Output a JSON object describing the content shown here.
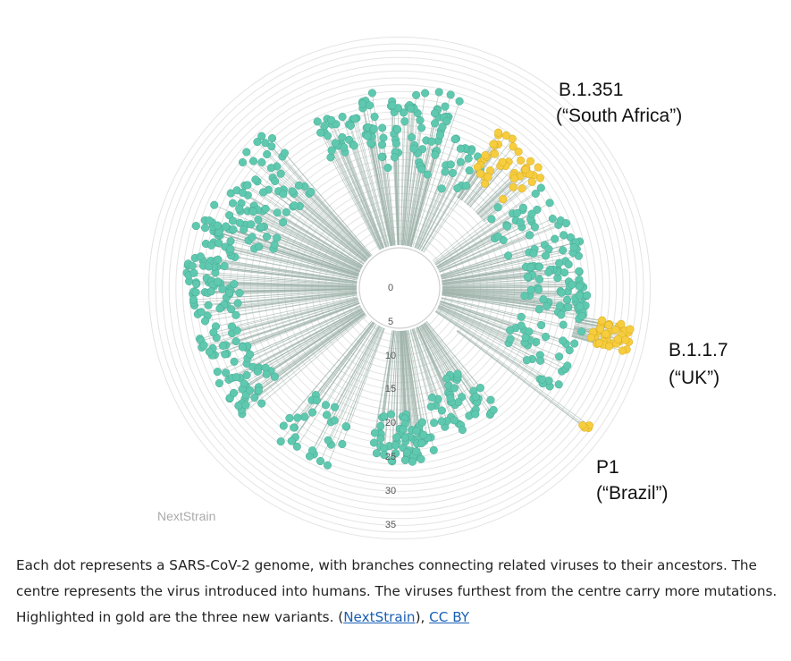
{
  "figure": {
    "variant_labels": [
      {
        "id": "b1351",
        "code": "B.1.351",
        "region": "(“South Africa”)"
      },
      {
        "id": "b117",
        "code": "B.1.1.7",
        "region": "(“UK”)"
      },
      {
        "id": "p1",
        "code": "P1",
        "region": "(“Brazil”)"
      }
    ],
    "ring_ticks": [
      "0",
      "5",
      "10",
      "15",
      "20",
      "25",
      "30",
      "35"
    ],
    "watermark": "NextStrain",
    "colors": {
      "standard": "#5fc9b0",
      "variant": "#f5cd3f",
      "branch": "#9fb3ac",
      "ring": "#e4e4e4"
    }
  },
  "caption": {
    "text_main": "Each dot represents a SARS-CoV-2 genome, with branches connecting related viruses to their ancestors. The centre represents the virus introduced into humans. The viruses furthest from the centre carry more mutations. Highlighted in gold are the three new variants. (",
    "link_source": "NextStrain",
    "text_sep": "), ",
    "link_license": "CC BY"
  }
}
